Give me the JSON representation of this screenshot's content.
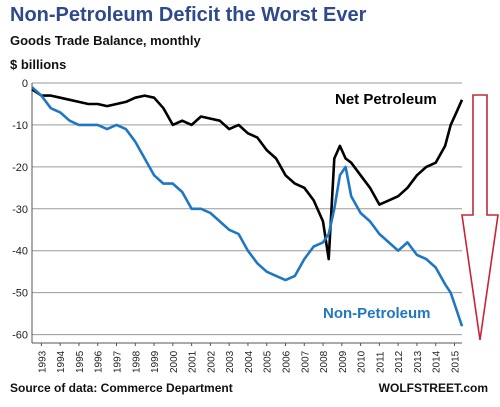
{
  "header": {
    "title": "Non-Petroleum Deficit  the Worst Ever",
    "subtitle": "Goods Trade Balance, monthly",
    "units": "$ billions"
  },
  "footer": {
    "source": "Source of data:  Commerce Department",
    "credit": "WOLFSTREET.com"
  },
  "colors": {
    "net_petroleum": "#000000",
    "non_petroleum": "#1f77c4",
    "arrow": "#c0283a",
    "gridline": "#9a9a9a",
    "title": "#2f4a8c"
  },
  "chart_data": {
    "type": "line",
    "ylim": [
      -62,
      0
    ],
    "xlim": [
      1992.5,
      2015.4
    ],
    "y_ticks": [
      0,
      -10,
      -20,
      -30,
      -40,
      -50,
      -60
    ],
    "x_ticks": [
      "1993",
      "1994",
      "1995",
      "1996",
      "1997",
      "1998",
      "1999",
      "2000",
      "2001",
      "2002",
      "2003",
      "2004",
      "2005",
      "2006",
      "2007",
      "2008",
      "2009",
      "2010",
      "2011",
      "2012",
      "2013",
      "2014",
      "2015"
    ],
    "grid": "horizontal",
    "series": [
      {
        "name": "Net Petroleum",
        "color": "#000000",
        "x": [
          1992.5,
          1993.0,
          1993.5,
          1994.0,
          1994.5,
          1995.0,
          1995.5,
          1996.0,
          1996.5,
          1997.0,
          1997.5,
          1998.0,
          1998.5,
          1999.0,
          1999.5,
          2000.0,
          2000.5,
          2001.0,
          2001.5,
          2002.0,
          2002.5,
          2003.0,
          2003.5,
          2004.0,
          2004.5,
          2005.0,
          2005.5,
          2006.0,
          2006.5,
          2007.0,
          2007.5,
          2008.0,
          2008.3,
          2008.6,
          2008.9,
          2009.2,
          2009.5,
          2010.0,
          2010.5,
          2011.0,
          2011.5,
          2012.0,
          2012.5,
          2013.0,
          2013.5,
          2014.0,
          2014.5,
          2014.8,
          2015.1,
          2015.4
        ],
        "values": [
          -1.5,
          -3,
          -3,
          -3.5,
          -4,
          -4.5,
          -5,
          -5,
          -5.5,
          -5,
          -4.5,
          -3.5,
          -3,
          -3.5,
          -6,
          -10,
          -9,
          -10,
          -8,
          -8.5,
          -9,
          -11,
          -10,
          -12,
          -13,
          -16,
          -18,
          -22,
          -24,
          -25,
          -28,
          -33,
          -42,
          -18,
          -15,
          -18,
          -19,
          -22,
          -25,
          -29,
          -28,
          -27,
          -25,
          -22,
          -20,
          -19,
          -15,
          -10,
          -7,
          -4
        ]
      },
      {
        "name": "Non-Petroleum",
        "color": "#1f77c4",
        "x": [
          1992.5,
          1993.0,
          1993.5,
          1994.0,
          1994.5,
          1995.0,
          1995.5,
          1996.0,
          1996.5,
          1997.0,
          1997.5,
          1998.0,
          1998.5,
          1999.0,
          1999.5,
          2000.0,
          2000.5,
          2001.0,
          2001.5,
          2002.0,
          2002.5,
          2003.0,
          2003.5,
          2004.0,
          2004.5,
          2005.0,
          2005.5,
          2006.0,
          2006.5,
          2007.0,
          2007.5,
          2008.0,
          2008.3,
          2008.6,
          2008.9,
          2009.2,
          2009.5,
          2010.0,
          2010.5,
          2011.0,
          2011.5,
          2012.0,
          2012.5,
          2013.0,
          2013.5,
          2014.0,
          2014.5,
          2014.8,
          2015.1,
          2015.4
        ],
        "values": [
          -1,
          -3,
          -6,
          -7,
          -9,
          -10,
          -10,
          -10,
          -11,
          -10,
          -11,
          -14,
          -18,
          -22,
          -24,
          -24,
          -26,
          -30,
          -30,
          -31,
          -33,
          -35,
          -36,
          -40,
          -43,
          -45,
          -46,
          -47,
          -46,
          -42,
          -39,
          -38,
          -36,
          -30,
          -22,
          -20,
          -27,
          -31,
          -33,
          -36,
          -38,
          -40,
          -38,
          -41,
          -42,
          -44,
          -48,
          -50,
          -54,
          -58
        ]
      }
    ]
  }
}
